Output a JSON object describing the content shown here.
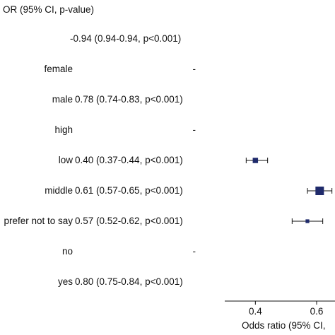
{
  "chart_data": {
    "type": "forest",
    "header": "OR (95% CI, p-value)",
    "xlabel": "Odds ratio (95% CI,",
    "xlim": [
      0.3,
      0.66
    ],
    "xticks": [
      "0.4",
      "0.6"
    ],
    "xtick_values": [
      0.4,
      0.6
    ],
    "point_color": "#1f2a6b",
    "rows": [
      {
        "label": "",
        "or_text": "-0.94 (0.94-0.94, p<0.001)",
        "estimate": null,
        "lower": null,
        "upper": null
      },
      {
        "label": "female",
        "or_text": "-",
        "estimate": null,
        "lower": null,
        "upper": null
      },
      {
        "label": "male",
        "or_text": "0.78 (0.74-0.83, p<0.001)",
        "estimate": null,
        "lower": null,
        "upper": null
      },
      {
        "label": "high",
        "or_text": "-",
        "estimate": null,
        "lower": null,
        "upper": null
      },
      {
        "label": "low",
        "or_text": "0.40 (0.37-0.44, p<0.001)",
        "estimate": 0.4,
        "lower": 0.37,
        "upper": 0.44,
        "weight": 0.5
      },
      {
        "label": "middle",
        "or_text": "0.61 (0.57-0.65, p<0.001)",
        "estimate": 0.61,
        "lower": 0.57,
        "upper": 0.65,
        "weight": 1.0
      },
      {
        "label": "prefer not to say",
        "or_text": "0.57 (0.52-0.62, p<0.001)",
        "estimate": 0.57,
        "lower": 0.52,
        "upper": 0.62,
        "weight": 0.25
      },
      {
        "label": "no",
        "or_text": "-",
        "estimate": null,
        "lower": null,
        "upper": null
      },
      {
        "label": "yes",
        "or_text": "0.80 (0.75-0.84, p<0.001)",
        "estimate": null,
        "lower": null,
        "upper": null
      }
    ]
  }
}
